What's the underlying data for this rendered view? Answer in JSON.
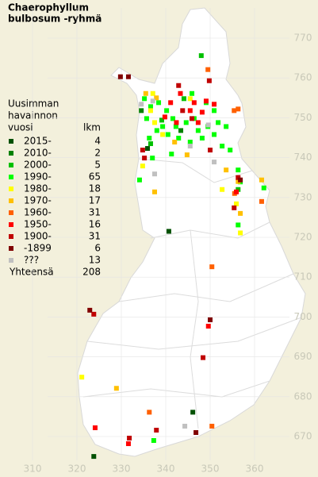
{
  "title": [
    "Chaerophyllum",
    "bulbosum -ryhmä"
  ],
  "legend": {
    "heading": [
      "Uusimman",
      "havainnon",
      "vuosi"
    ],
    "count_heading": "lkm",
    "items": [
      {
        "label": "2015-",
        "count": 4,
        "color": "#005000",
        "points": [
          [
            335.9,
            742.3
          ],
          [
            340.7,
            721.5
          ],
          [
            346.1,
            676.1
          ],
          [
            323.8,
            665
          ]
        ]
      },
      {
        "label": "2010-",
        "count": 2,
        "color": "#008000",
        "points": [
          [
            334.5,
            751.8
          ],
          [
            343.4,
            746.8
          ]
        ]
      },
      {
        "label": "2000-",
        "count": 5,
        "color": "#00c000",
        "points": [
          [
            339.1,
            749.4
          ],
          [
            344.1,
            754.8
          ],
          [
            356.3,
            732
          ],
          [
            348,
            765.6
          ],
          [
            336.6,
            743.5
          ]
        ]
      },
      {
        "label": "1990-",
        "count": 65,
        "color": "#00ff00",
        "points": [
          [
            335.2,
            754.8
          ],
          [
            336.6,
            752.8
          ],
          [
            338.4,
            753.8
          ],
          [
            340.2,
            751.8
          ],
          [
            341.6,
            749.8
          ],
          [
            339.3,
            747.8
          ],
          [
            342.3,
            747.8
          ],
          [
            344.6,
            748.8
          ],
          [
            346.4,
            749.8
          ],
          [
            347.3,
            746.8
          ],
          [
            349.5,
            747.8
          ],
          [
            351.8,
            748.8
          ],
          [
            353.6,
            747.8
          ],
          [
            350.9,
            745.8
          ],
          [
            348.2,
            744.9
          ],
          [
            345.5,
            743.9
          ],
          [
            342.9,
            744.9
          ],
          [
            340.5,
            745.8
          ],
          [
            338,
            746.8
          ],
          [
            335.7,
            749.8
          ],
          [
            336.3,
            744.9
          ],
          [
            337,
            739.9
          ],
          [
            341.3,
            740.9
          ],
          [
            352.7,
            742.9
          ],
          [
            354.5,
            741.9
          ],
          [
            356.3,
            736.9
          ],
          [
            356.8,
            733.9
          ],
          [
            362.1,
            732.4
          ],
          [
            334.1,
            734.4
          ],
          [
            337.3,
            669
          ],
          [
            356.3,
            723.1
          ],
          [
            345.9,
            756.1
          ],
          [
            349.1,
            753.8
          ],
          [
            350.9,
            751.8
          ]
        ]
      },
      {
        "label": "1980-",
        "count": 18,
        "color": "#ffff00",
        "points": [
          [
            321.1,
            684.9
          ],
          [
            336.6,
            751.8
          ],
          [
            337.5,
            748.8
          ],
          [
            339.3,
            745.8
          ],
          [
            334.8,
            737.9
          ],
          [
            355.9,
            728.4
          ],
          [
            352.7,
            732
          ],
          [
            356.8,
            721.1
          ],
          [
            337.1,
            756.1
          ],
          [
            345.5,
            754.8
          ]
        ]
      },
      {
        "label": "1970-",
        "count": 17,
        "color": "#ffc000",
        "points": [
          [
            328.9,
            682.1
          ],
          [
            335.5,
            756.1
          ],
          [
            337.9,
            755
          ],
          [
            342,
            743.9
          ],
          [
            344.8,
            740.7
          ],
          [
            337.5,
            731.4
          ],
          [
            353.6,
            736.9
          ],
          [
            356.3,
            734
          ],
          [
            356.8,
            726
          ],
          [
            361.6,
            734.4
          ]
        ]
      },
      {
        "label": "1960-",
        "count": 31,
        "color": "#ff6000",
        "points": [
          [
            349.5,
            762.1
          ],
          [
            336.3,
            676.1
          ],
          [
            350.4,
            712.6
          ],
          [
            355.4,
            751.8
          ],
          [
            356.3,
            752.2
          ],
          [
            350.4,
            672.6
          ],
          [
            355.5,
            731
          ],
          [
            361.6,
            729
          ]
        ]
      },
      {
        "label": "1950-",
        "count": 16,
        "color": "#ff0000",
        "points": [
          [
            343.3,
            756.1
          ],
          [
            346.4,
            753.8
          ],
          [
            349.1,
            754.2
          ],
          [
            350.9,
            753.4
          ],
          [
            345.5,
            751.8
          ],
          [
            347.3,
            748.8
          ],
          [
            342.4,
            748.8
          ],
          [
            339.8,
            750.2
          ],
          [
            355.9,
            731.4
          ],
          [
            324.1,
            672.2
          ],
          [
            331.6,
            668.2
          ],
          [
            349.6,
            697.7
          ],
          [
            341.1,
            753.8
          ],
          [
            348.2,
            751.4
          ]
        ]
      },
      {
        "label": "1900-",
        "count": 31,
        "color": "#c00000",
        "points": [
          [
            349.8,
            759.3
          ],
          [
            334.8,
            741.9
          ],
          [
            343.8,
            751.8
          ],
          [
            345.9,
            749.8
          ],
          [
            356.3,
            735
          ],
          [
            355.4,
            727.4
          ],
          [
            323.8,
            700.7
          ],
          [
            348.4,
            689.8
          ],
          [
            337.9,
            671.6
          ],
          [
            331.8,
            669.6
          ],
          [
            342.9,
            758.1
          ],
          [
            335.2,
            739.9
          ],
          [
            350,
            741.9
          ]
        ]
      },
      {
        "label": "-1899",
        "count": 6,
        "color": "#800000",
        "points": [
          [
            329.8,
            760.3
          ],
          [
            331.6,
            760.3
          ],
          [
            350,
            699.3
          ],
          [
            356.8,
            734.4
          ],
          [
            322.9,
            701.7
          ],
          [
            346.8,
            671
          ]
        ]
      },
      {
        "label": "???",
        "count": 13,
        "color": "#c0c0c0",
        "points": [
          [
            334.5,
            753.4
          ],
          [
            350.9,
            738.9
          ],
          [
            349.6,
            748.2
          ],
          [
            337.5,
            735.9
          ],
          [
            337.1,
            754.2
          ],
          [
            345.5,
            742.9
          ],
          [
            344.3,
            672.6
          ]
        ]
      }
    ],
    "total_label": "Yhteensä",
    "total": 208
  },
  "xticks": [
    310,
    320,
    330,
    340,
    350,
    360
  ],
  "yticks": [
    670,
    680,
    690,
    700,
    710,
    720,
    730,
    740,
    750,
    760,
    770
  ]
}
